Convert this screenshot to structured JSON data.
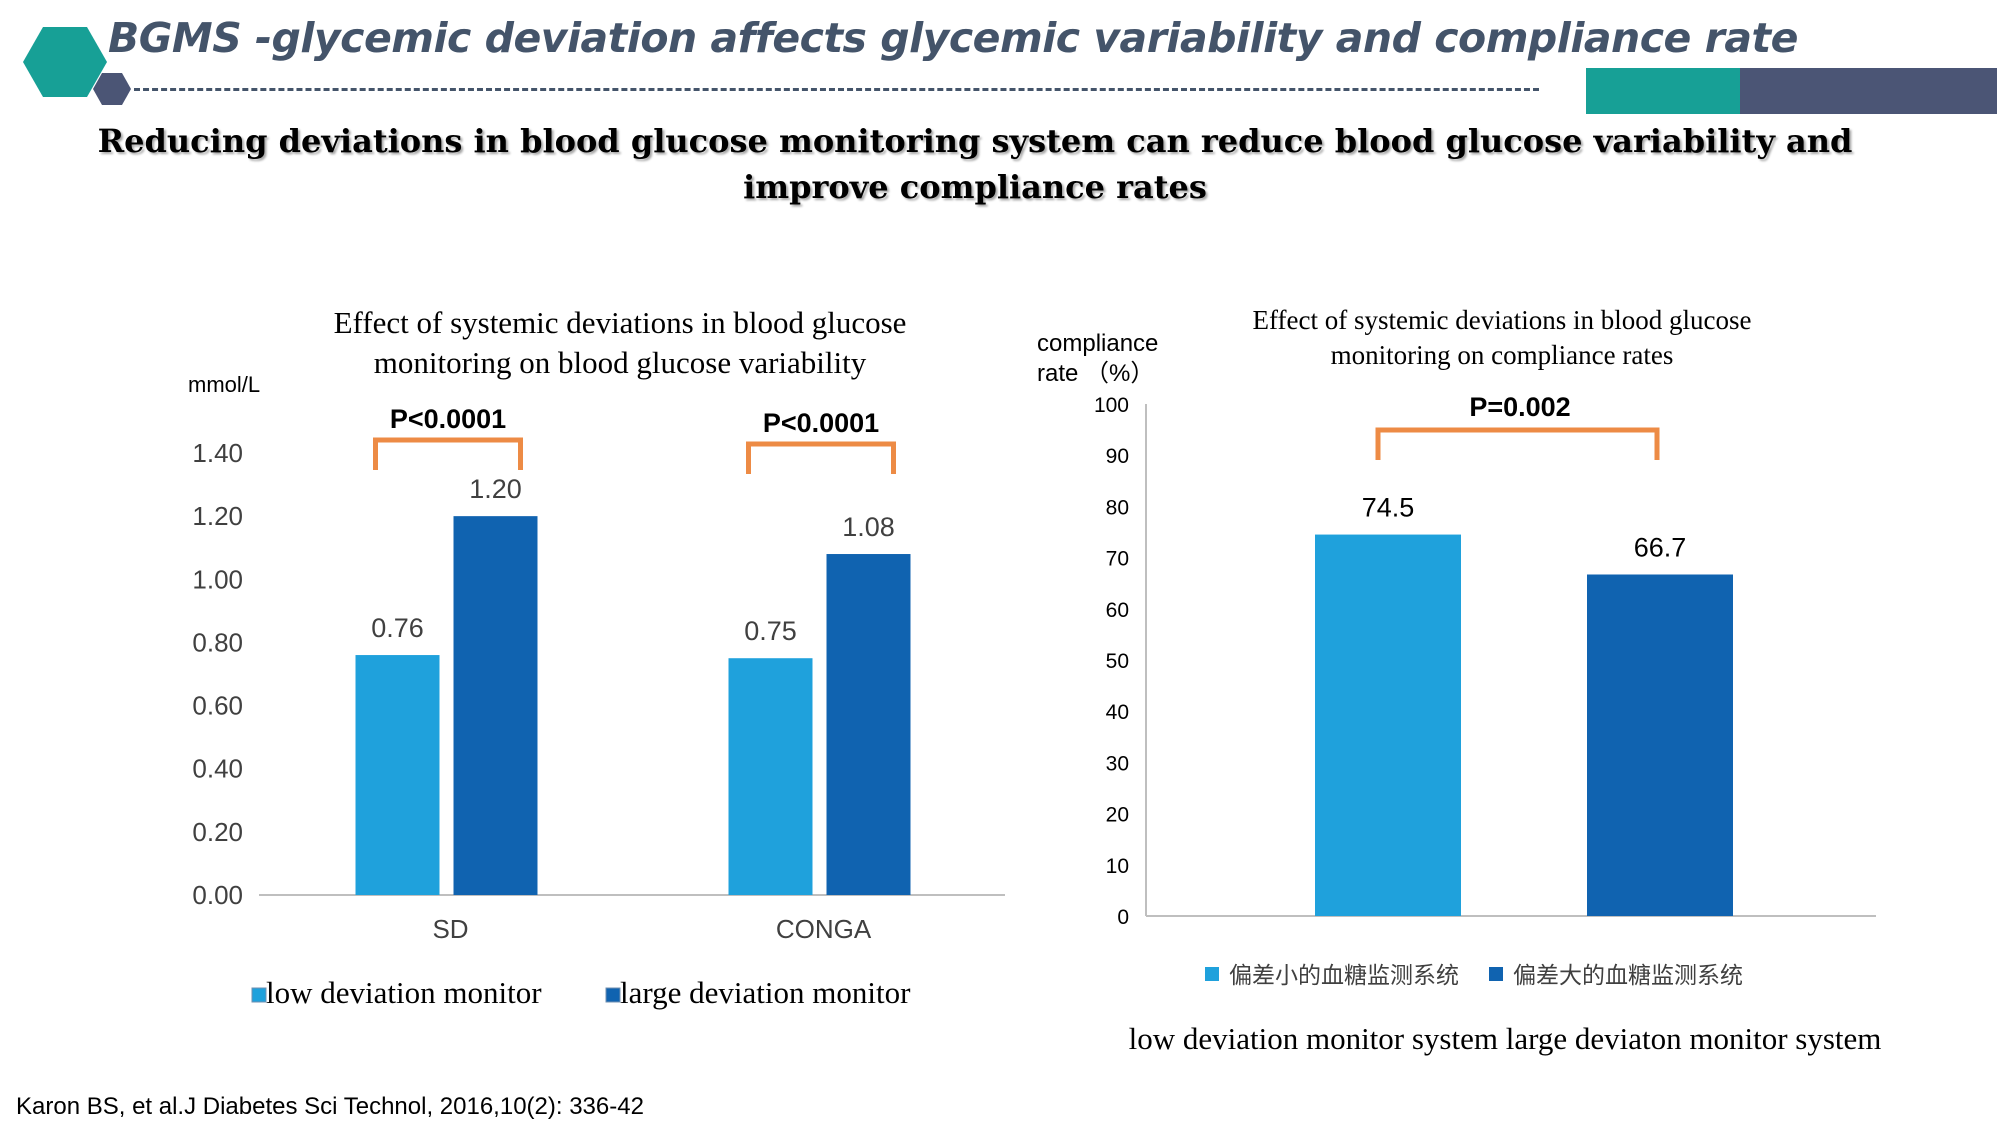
{
  "header": {
    "title": "BGMS -glycemic deviation affects glycemic variability and compliance rate",
    "subtitle": "Reducing deviations in blood glucose monitoring system can reduce blood glucose variability and improve compliance rates"
  },
  "colors": {
    "accent_teal": "#17a096",
    "accent_slate": "#4b5575",
    "title_color": "#44546a",
    "low_deviation": "#1fa1dc",
    "large_deviation": "#1063b0",
    "bracket": "#ed8b45"
  },
  "citation": "Karon BS, et al.J Diabetes Sci Technol, 2016,10(2): 336-42",
  "chart_data": [
    {
      "type": "bar",
      "title": [
        "Effect of systemic deviations in blood glucose",
        "monitoring on blood glucose variability"
      ],
      "ylabel": "mmol/L",
      "categories": [
        "SD",
        "CONGA"
      ],
      "series": [
        {
          "name": "low deviation monitor",
          "values": [
            0.76,
            0.75
          ],
          "labels": [
            "0.76",
            "0.75"
          ]
        },
        {
          "name": "large deviation monitor",
          "values": [
            1.2,
            1.08
          ],
          "labels": [
            "1.20",
            "1.08"
          ]
        }
      ],
      "ylim": [
        0,
        1.4
      ],
      "yticks": [
        "0.00",
        "0.20",
        "0.40",
        "0.60",
        "0.80",
        "1.00",
        "1.20",
        "1.40"
      ],
      "annotations": [
        "P<0.0001",
        "P<0.0001"
      ],
      "legend_position": "bottom",
      "grid": false
    },
    {
      "type": "bar",
      "title": [
        "Effect of systemic deviations in blood glucose",
        "monitoring on compliance rates"
      ],
      "ylabel": [
        "compliance",
        "rate （%）"
      ],
      "categories": [
        "偏差小的血糖监测系统",
        "偏差大的血糖监测系统"
      ],
      "values": [
        74.5,
        66.7
      ],
      "value_labels": [
        "74.5",
        "66.7"
      ],
      "ylim": [
        0,
        100
      ],
      "yticks": [
        "0",
        "10",
        "20",
        "30",
        "40",
        "50",
        "60",
        "70",
        "80",
        "90",
        "100"
      ],
      "annotation": "P=0.002",
      "legend": [
        "偏差小的血糖监测系统",
        "偏差大的血糖监测系统"
      ],
      "english_legend": "low deviation monitor system   large deviaton monitor system",
      "legend_position": "bottom",
      "grid": false
    }
  ]
}
